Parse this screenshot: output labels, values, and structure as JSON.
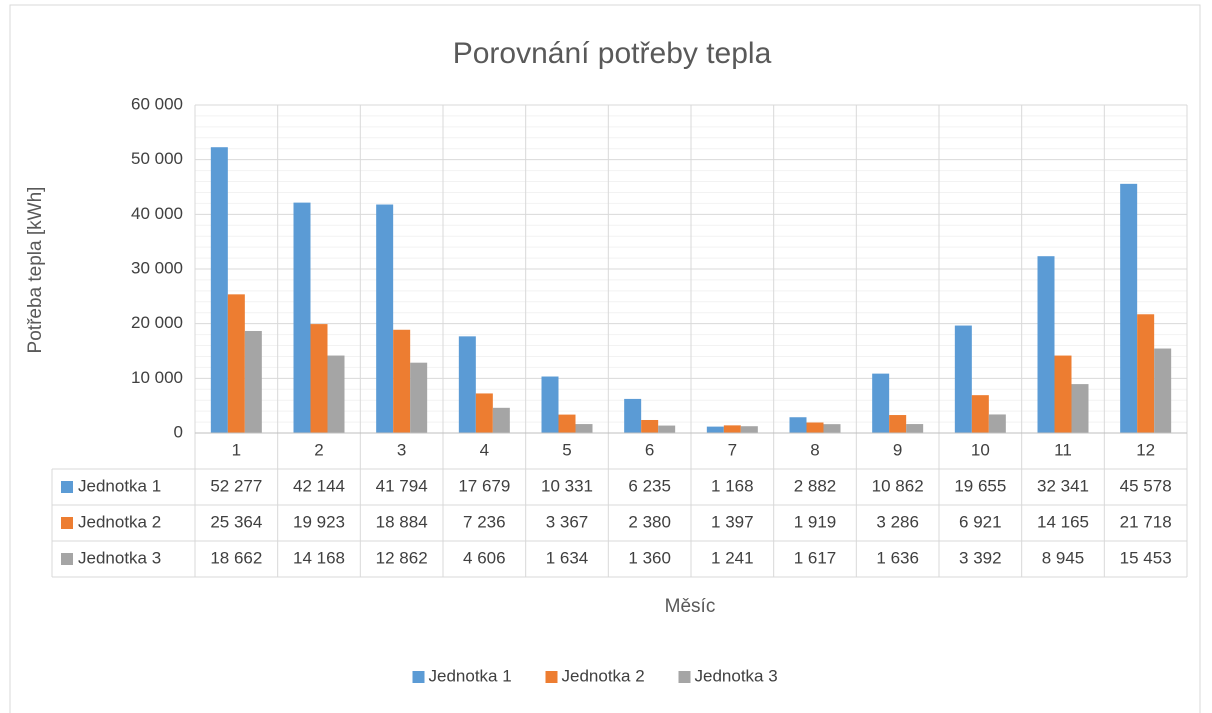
{
  "chart_data": {
    "type": "bar",
    "title": "Porovnání potřeby tepla",
    "ylabel": "Potřeba tepla [kWh]",
    "xlabel": "Měsíc",
    "categories": [
      "1",
      "2",
      "3",
      "4",
      "5",
      "6",
      "7",
      "8",
      "9",
      "10",
      "11",
      "12"
    ],
    "series": [
      {
        "name": "Jednotka 1",
        "color": "#5b9bd5",
        "values": [
          52277,
          42144,
          41794,
          17679,
          10331,
          6235,
          1168,
          2882,
          10862,
          19655,
          32341,
          45578
        ],
        "value_labels": [
          "52 277",
          "42 144",
          "41 794",
          "17 679",
          "10 331",
          "6 235",
          "1 168",
          "2 882",
          "10 862",
          "19 655",
          "32 341",
          "45 578"
        ]
      },
      {
        "name": "Jednotka 2",
        "color": "#ed7d31",
        "values": [
          25364,
          19923,
          18884,
          7236,
          3367,
          2380,
          1397,
          1919,
          3286,
          6921,
          14165,
          21718
        ],
        "value_labels": [
          "25 364",
          "19 923",
          "18 884",
          "7 236",
          "3 367",
          "2 380",
          "1 397",
          "1 919",
          "3 286",
          "6 921",
          "14 165",
          "21 718"
        ]
      },
      {
        "name": "Jednotka 3",
        "color": "#a5a5a5",
        "values": [
          18662,
          14168,
          12862,
          4606,
          1634,
          1360,
          1241,
          1617,
          1636,
          3392,
          8945,
          15453
        ],
        "value_labels": [
          "18 662",
          "14 168",
          "12 862",
          "4 606",
          "1 634",
          "1 360",
          "1 241",
          "1 617",
          "1 636",
          "3 392",
          "8 945",
          "15 453"
        ]
      }
    ],
    "ylim": [
      0,
      60000
    ],
    "yticks": [
      0,
      {
        "value": 10000,
        "label": "10 000"
      },
      {
        "value": 20000,
        "label": "20 000"
      },
      {
        "value": 30000,
        "label": "30 000"
      },
      {
        "value": 40000,
        "label": "40 000"
      },
      {
        "value": 50000,
        "label": "50 000"
      },
      {
        "value": 60000,
        "label": "60 000"
      }
    ],
    "grid": true,
    "minor_grid": true,
    "data_table": true,
    "legend": "bottom"
  }
}
